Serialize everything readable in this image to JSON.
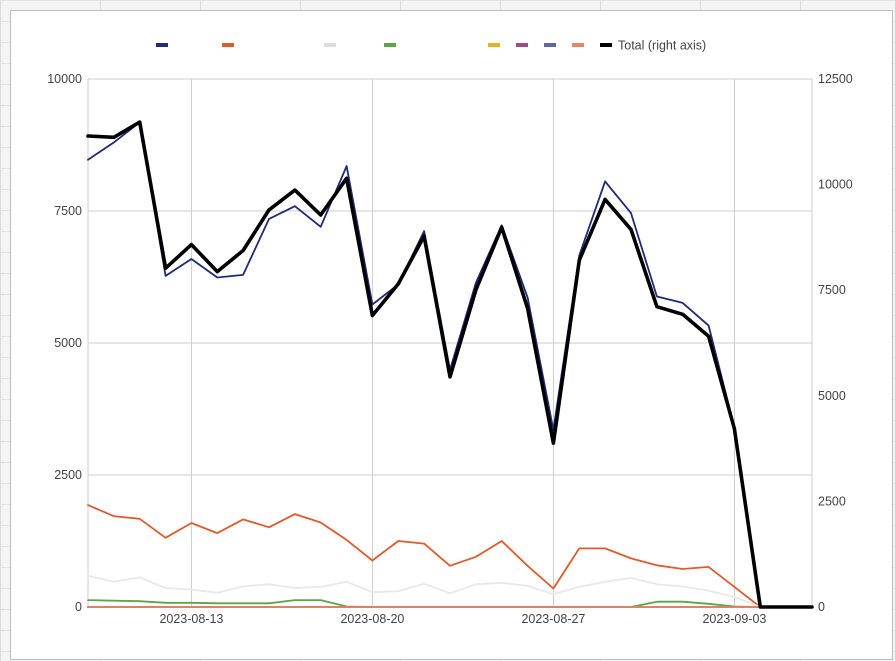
{
  "chart_data": {
    "type": "line",
    "title": "",
    "xlabel": "",
    "ylabel": "",
    "grid": true,
    "legend_position": "top",
    "x_ticks": [
      "2023-08-13",
      "2023-08-20",
      "2023-08-27",
      "2023-09-03"
    ],
    "y_left": {
      "min": 0,
      "max": 10000,
      "ticks": [
        "0",
        "2500",
        "5000",
        "7500",
        "10000"
      ]
    },
    "y_right": {
      "min": 0,
      "max": 12500,
      "ticks": [
        "0",
        "2500",
        "5000",
        "7500",
        "10000",
        "12500"
      ]
    },
    "x": [
      "2023-08-09",
      "2023-08-10",
      "2023-08-11",
      "2023-08-12",
      "2023-08-13",
      "2023-08-14",
      "2023-08-15",
      "2023-08-16",
      "2023-08-17",
      "2023-08-18",
      "2023-08-19",
      "2023-08-20",
      "2023-08-21",
      "2023-08-22",
      "2023-08-23",
      "2023-08-24",
      "2023-08-25",
      "2023-08-26",
      "2023-08-27",
      "2023-08-28",
      "2023-08-29",
      "2023-08-30",
      "2023-08-31",
      "2023-09-01",
      "2023-09-02",
      "2023-09-03",
      "2023-09-04",
      "2023-09-05",
      "2023-09-06"
    ],
    "series": [
      {
        "color": "#1f2a7a",
        "axis": "left",
        "width": 1.8,
        "values": [
          8470,
          8800,
          9180,
          6270,
          6590,
          6240,
          6290,
          7350,
          7590,
          7200,
          8350,
          5730,
          6110,
          7120,
          4490,
          6140,
          7230,
          5860,
          3350,
          6660,
          8060,
          7460,
          5880,
          5760,
          5330,
          3400,
          0,
          0,
          0
        ]
      },
      {
        "color": "#e05a2b",
        "axis": "left",
        "width": 1.8,
        "values": [
          1930,
          1720,
          1670,
          1310,
          1590,
          1400,
          1660,
          1510,
          1760,
          1600,
          1270,
          880,
          1250,
          1200,
          780,
          950,
          1250,
          780,
          350,
          1110,
          1110,
          920,
          790,
          720,
          760,
          380,
          0,
          0,
          0
        ]
      },
      {
        "color": "#e8e8e8",
        "axis": "left",
        "width": 1.8,
        "values": [
          590,
          480,
          560,
          360,
          330,
          270,
          390,
          430,
          360,
          380,
          480,
          280,
          300,
          440,
          260,
          430,
          460,
          400,
          240,
          380,
          480,
          550,
          430,
          390,
          310,
          190,
          0,
          0,
          0
        ]
      },
      {
        "color": "#5aa545",
        "axis": "left",
        "width": 1.8,
        "values": [
          130,
          120,
          110,
          80,
          80,
          70,
          70,
          70,
          130,
          130,
          10,
          0,
          0,
          0,
          0,
          0,
          0,
          0,
          0,
          0,
          0,
          0,
          100,
          100,
          60,
          10,
          0,
          0,
          0
        ]
      },
      {
        "color": "#e6b322",
        "axis": "left",
        "width": 1.8,
        "values": [
          0,
          0,
          0,
          0,
          0,
          0,
          0,
          0,
          0,
          0,
          0,
          0,
          0,
          0,
          0,
          0,
          0,
          0,
          0,
          0,
          0,
          0,
          0,
          0,
          0,
          0,
          0,
          0,
          0
        ]
      },
      {
        "color": "#a14c80",
        "axis": "left",
        "width": 1.8,
        "values": [
          0,
          0,
          0,
          0,
          0,
          0,
          0,
          0,
          0,
          0,
          0,
          0,
          0,
          0,
          0,
          0,
          0,
          0,
          0,
          0,
          0,
          0,
          0,
          0,
          0,
          0,
          0,
          0,
          0
        ]
      },
      {
        "color": "#5968a8",
        "axis": "left",
        "width": 1.8,
        "values": [
          0,
          0,
          0,
          0,
          0,
          0,
          0,
          0,
          0,
          0,
          0,
          0,
          0,
          0,
          0,
          0,
          0,
          0,
          0,
          0,
          0,
          0,
          0,
          0,
          0,
          0,
          0,
          0,
          0
        ]
      },
      {
        "color": "#e88762",
        "axis": "left",
        "width": 1.8,
        "values": [
          0,
          0,
          0,
          0,
          0,
          0,
          0,
          0,
          0,
          0,
          0,
          0,
          0,
          0,
          0,
          0,
          0,
          0,
          0,
          0,
          0,
          0,
          0,
          0,
          0,
          0,
          0,
          0,
          0
        ]
      },
      {
        "name": "Total (right axis)",
        "color": "#000000",
        "axis": "right",
        "width": 3.6,
        "values": [
          11150,
          11120,
          11480,
          8020,
          8580,
          7940,
          8440,
          9400,
          9870,
          9280,
          10150,
          6900,
          7650,
          8780,
          5450,
          7510,
          8990,
          7070,
          3880,
          8210,
          9650,
          8940,
          7110,
          6930,
          6410,
          4220,
          0,
          0,
          0
        ]
      }
    ]
  }
}
